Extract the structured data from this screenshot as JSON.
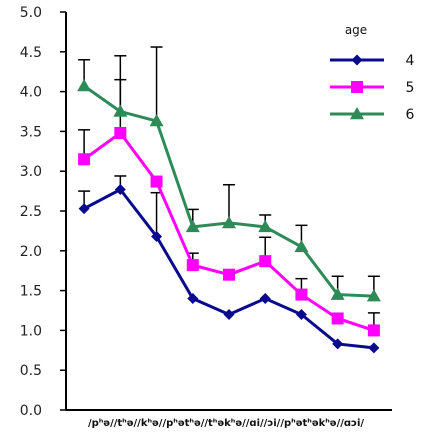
{
  "chart_data": {
    "type": "line",
    "title": "",
    "xlabel": "",
    "ylabel": "",
    "ylim": [
      0,
      5
    ],
    "yticks": [
      "0.0",
      "0.5",
      "1.0",
      "1.5",
      "2.0",
      "2.5",
      "3.0",
      "3.5",
      "4.0",
      "4.5",
      "5.0"
    ],
    "categories": [
      "/pʰə/",
      "/tʰə/",
      "/kʰə/",
      "/pʰətʰə/",
      "/tʰəkʰə/",
      "/ɑi/",
      "/ɔi/",
      "/pʰətʰəkʰə/",
      "/ɑɔi/"
    ],
    "category_strip": "/pʰə//tʰə//kʰə//pʰətʰə//tʰəkʰə//ɑi//ɔi//pʰətʰəkʰə//ɑɔi/",
    "legend": {
      "title": "age",
      "position": "top-right"
    },
    "series": [
      {
        "name": "4",
        "color": "#0a0a8c",
        "marker": "diamond",
        "values": [
          2.53,
          2.77,
          2.18,
          1.4,
          1.2,
          1.4,
          1.2,
          0.83,
          0.78
        ],
        "errors": [
          0.22,
          0.17,
          0.55,
          0.0,
          0.0,
          0.0,
          0.0,
          0.0,
          0.0
        ]
      },
      {
        "name": "5",
        "color": "#ff00ff",
        "marker": "square",
        "values": [
          3.15,
          3.48,
          2.87,
          1.82,
          1.7,
          1.87,
          1.45,
          1.15,
          1.0
        ],
        "errors": [
          0.37,
          0.67,
          0.0,
          0.15,
          0.0,
          0.3,
          0.2,
          0.0,
          0.22
        ]
      },
      {
        "name": "6",
        "color": "#2e8b57",
        "marker": "triangle",
        "values": [
          4.07,
          3.75,
          3.63,
          2.3,
          2.35,
          2.3,
          2.05,
          1.45,
          1.43
        ],
        "errors": [
          0.33,
          0.7,
          0.93,
          0.22,
          0.48,
          0.15,
          0.27,
          0.23,
          0.25
        ]
      }
    ]
  }
}
